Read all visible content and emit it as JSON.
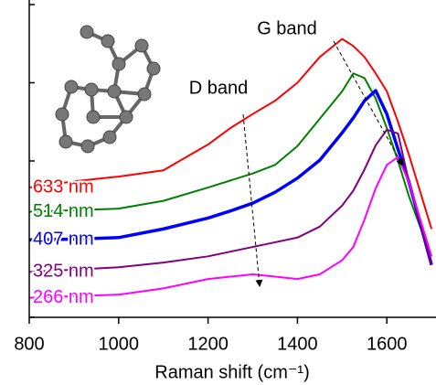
{
  "chart_data": {
    "type": "line",
    "xlabel": "Raman shift (cm⁻¹)",
    "annotations": [
      "G band",
      "D band"
    ],
    "x": [
      800,
      900,
      1000,
      1100,
      1200,
      1250,
      1300,
      1350,
      1400,
      1450,
      1500,
      1525,
      1550,
      1575,
      1600,
      1625,
      1650,
      1675,
      1700
    ],
    "series": [
      {
        "name": "633 nm",
        "color": "#ff0000",
        "values": [
          1.66,
          1.74,
          1.8,
          1.88,
          2.21,
          2.42,
          2.6,
          2.77,
          3.0,
          3.33,
          3.56,
          3.47,
          3.33,
          3.12,
          2.89,
          2.5,
          2.07,
          1.6,
          1.13
        ]
      },
      {
        "name": "514 nm",
        "color": "#008000",
        "values": [
          1.35,
          1.37,
          1.39,
          1.49,
          1.66,
          1.75,
          1.84,
          1.95,
          2.19,
          2.54,
          2.89,
          3.12,
          3.06,
          2.8,
          2.42,
          2.0,
          1.54,
          1.15,
          0.78
        ]
      },
      {
        "name": "407 nm",
        "color": "#0000ff",
        "values": [
          0.99,
          1.0,
          1.02,
          1.13,
          1.27,
          1.36,
          1.46,
          1.6,
          1.78,
          2.01,
          2.36,
          2.55,
          2.77,
          2.9,
          2.6,
          2.15,
          1.72,
          1.2,
          0.67
        ]
      },
      {
        "name": "325 nm",
        "color": "#800080",
        "values": [
          0.58,
          0.61,
          0.64,
          0.7,
          0.78,
          0.84,
          0.9,
          0.96,
          1.02,
          1.16,
          1.43,
          1.62,
          1.89,
          2.2,
          2.4,
          2.35,
          1.72,
          1.2,
          0.67
        ]
      },
      {
        "name": "266 nm",
        "color": "#ff00ff",
        "values": [
          0.25,
          0.27,
          0.29,
          0.37,
          0.49,
          0.52,
          0.55,
          0.52,
          0.49,
          0.55,
          0.73,
          0.9,
          1.25,
          1.65,
          1.95,
          2.05,
          1.72,
          1.25,
          0.78
        ]
      }
    ],
    "xlim": [
      800,
      1710
    ],
    "xticks": [
      800,
      1000,
      1200,
      1400,
      1600
    ],
    "ylim": [
      0,
      4
    ],
    "yticks": [
      0,
      1,
      2,
      3,
      4
    ]
  }
}
